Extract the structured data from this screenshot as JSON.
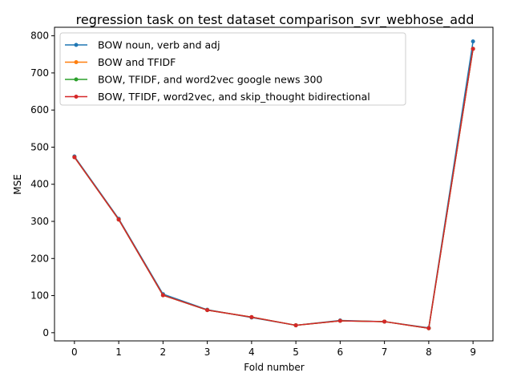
{
  "chart_data": {
    "type": "line",
    "title": "regression task on test dataset comparison_svr_webhose_add",
    "xlabel": "Fold number",
    "ylabel": "MSE",
    "x": [
      0,
      1,
      2,
      3,
      4,
      5,
      6,
      7,
      8,
      9
    ],
    "xlim": [
      -0.45,
      9.45
    ],
    "ylim": [
      -22,
      823
    ],
    "xticks": [
      0,
      1,
      2,
      3,
      4,
      5,
      6,
      7,
      8,
      9
    ],
    "yticks": [
      0,
      100,
      200,
      300,
      400,
      500,
      600,
      700,
      800
    ],
    "grid": false,
    "legend_position": "top-left",
    "series": [
      {
        "name": "BOW noun, verb and adj",
        "color": "#1f77b4",
        "values": [
          475,
          307,
          104,
          62,
          41,
          20,
          33,
          30,
          13,
          785
        ]
      },
      {
        "name": "BOW and TFIDF",
        "color": "#ff7f0e",
        "values": [
          473,
          305,
          101,
          61,
          42,
          20,
          32,
          30,
          12,
          765
        ]
      },
      {
        "name": "BOW, TFIDF, and word2vec google news 300",
        "color": "#2ca02c",
        "values": [
          473,
          305,
          101,
          61,
          42,
          20,
          32,
          30,
          12,
          765
        ]
      },
      {
        "name": "BOW, TFIDF, word2vec, and skip_thought bidirectional",
        "color": "#d62728",
        "values": [
          473,
          305,
          101,
          61,
          42,
          20,
          32,
          30,
          12,
          765
        ]
      }
    ]
  }
}
